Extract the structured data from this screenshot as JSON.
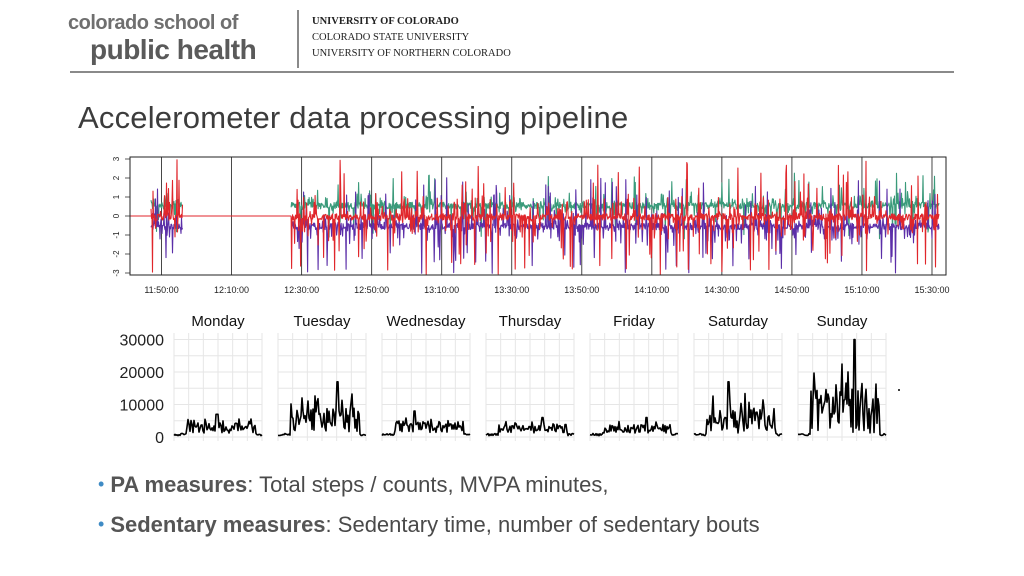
{
  "header": {
    "logo_line1": "colorado school of",
    "logo_line2": "public health",
    "universities": [
      "UNIVERSITY OF COLORADO",
      "COLORADO STATE UNIVERSITY",
      "UNIVERSITY OF NORTHERN COLORADO"
    ]
  },
  "title": "Accelerometer data processing pipeline",
  "chart_data": [
    {
      "type": "line",
      "title": "",
      "xlabel": "",
      "ylabel": "",
      "x_tick_labels": [
        "11:50:00",
        "12:10:00",
        "12:30:00",
        "12:50:00",
        "13:10:00",
        "13:30:00",
        "13:50:00",
        "14:10:00",
        "14:30:00",
        "14:50:00",
        "15:10:00",
        "15:30:00"
      ],
      "y_tick_labels": [
        "-3",
        "-2",
        "-1",
        "0",
        "1",
        "2",
        "3"
      ],
      "ylim": [
        -3,
        3
      ],
      "grid": "vertical lines",
      "series_colors": [
        "#3a9a7a",
        "#5b2ea8",
        "#e0262b"
      ],
      "segments": [
        {
          "start": "11:41",
          "end": "11:47",
          "state": "flat",
          "value": 0
        },
        {
          "start": "11:47",
          "end": "11:56",
          "state": "active"
        },
        {
          "start": "11:56",
          "end": "12:27",
          "state": "flat",
          "value": 0
        },
        {
          "start": "12:27",
          "end": "15:32",
          "state": "active"
        }
      ]
    },
    {
      "type": "line",
      "title": "",
      "panels": [
        "Monday",
        "Tuesday",
        "Wednesday",
        "Thursday",
        "Friday",
        "Saturday",
        "Sunday"
      ],
      "y_tick_labels": [
        "0",
        "10000",
        "20000",
        "30000"
      ],
      "ylim": [
        0,
        32000
      ],
      "series_color": "#000000",
      "grid": true,
      "daily_peak_estimates": [
        7000,
        17000,
        8000,
        6000,
        6000,
        17000,
        30000
      ]
    }
  ],
  "bullets": [
    {
      "label": "PA measures",
      "sep": ":",
      "text": " Total steps / counts, MVPA minutes,"
    },
    {
      "label": "Sedentary measures",
      "sep": ":",
      "text": " Sedentary time, number of sedentary bouts"
    }
  ]
}
